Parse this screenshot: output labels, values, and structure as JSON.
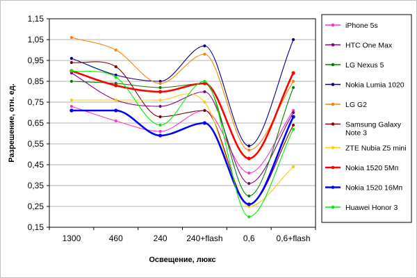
{
  "chart_data": {
    "type": "line",
    "title": "",
    "xlabel": "Освещение, люкс",
    "ylabel": "Разрешение, отн. ед.",
    "categories": [
      "1300",
      "460",
      "240",
      "240+flash",
      "0,6",
      "0,6+flash"
    ],
    "ylim": [
      0.15,
      1.15
    ],
    "yticks": [
      0.15,
      0.25,
      0.35,
      0.45,
      0.55,
      0.65,
      0.75,
      0.85,
      0.95,
      1.05,
      1.15
    ],
    "ytick_labels": [
      "0,15",
      "0,25",
      "0,35",
      "0,45",
      "0,55",
      "0,65",
      "0,75",
      "0,85",
      "0,95",
      "1,05",
      "1,15"
    ],
    "grid": true,
    "legend_position": "right",
    "series": [
      {
        "name": "iPhone 5s",
        "color": "#ff33cc",
        "values": [
          0.73,
          0.66,
          0.61,
          0.71,
          0.41,
          0.71
        ],
        "emphasis": false
      },
      {
        "name": "HTC One Max",
        "color": "#800080",
        "values": [
          0.89,
          0.76,
          0.73,
          0.8,
          0.36,
          0.7
        ],
        "emphasis": false
      },
      {
        "name": "LG Nexus 5",
        "color": "#008000",
        "values": [
          0.85,
          0.84,
          0.82,
          0.84,
          0.3,
          0.82
        ],
        "emphasis": false
      },
      {
        "name": "Nokia Lumia 1020",
        "color": "#000080",
        "values": [
          0.96,
          0.88,
          0.85,
          1.02,
          0.54,
          1.05
        ],
        "emphasis": false
      },
      {
        "name": "LG G2",
        "color": "#ff8000",
        "values": [
          1.06,
          1.0,
          0.84,
          0.98,
          0.52,
          0.85
        ],
        "emphasis": false
      },
      {
        "name": "Samsung Galaxy Note 3",
        "color": "#800000",
        "values": [
          0.94,
          0.92,
          0.68,
          0.71,
          0.26,
          0.64
        ],
        "emphasis": false
      },
      {
        "name": "ZTE Nubia Z5 mini",
        "color": "#ffcc00",
        "values": [
          0.76,
          0.76,
          0.76,
          0.75,
          0.25,
          0.44
        ],
        "emphasis": false
      },
      {
        "name": "Nokia 1520 5Мп",
        "color": "#ff0000",
        "values": [
          0.9,
          0.83,
          0.8,
          0.84,
          0.48,
          0.89
        ],
        "emphasis": true
      },
      {
        "name": "Nokia 1520 16Мп",
        "color": "#0000ff",
        "values": [
          0.71,
          0.71,
          0.59,
          0.65,
          0.26,
          0.68
        ],
        "emphasis": true
      },
      {
        "name": "Huawei Honor 3",
        "color": "#00ee00",
        "values": [
          0.9,
          0.87,
          0.64,
          0.85,
          0.2,
          0.62
        ],
        "emphasis": false
      }
    ]
  }
}
